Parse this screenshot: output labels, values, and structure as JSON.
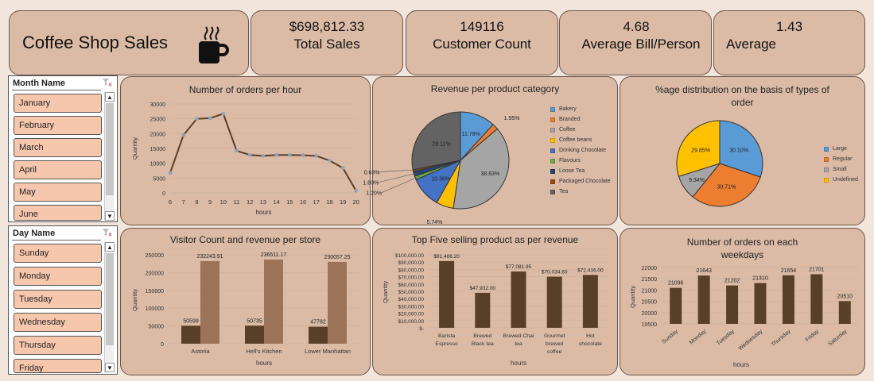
{
  "header": {
    "title": "Coffee Shop Sales",
    "icon": "coffee-cup-icon"
  },
  "kpis": [
    {
      "value": "$698,812.33",
      "label": "Total Sales"
    },
    {
      "value": "149116",
      "label": "Customer Count"
    },
    {
      "value": "4.68",
      "label": "Average Bill/Person"
    },
    {
      "value": "1.43",
      "label": "Average"
    }
  ],
  "slicers": {
    "month": {
      "header": "Month Name",
      "items": [
        "January",
        "February",
        "March",
        "April",
        "May",
        "June"
      ]
    },
    "day": {
      "header": "Day Name",
      "items": [
        "Sunday",
        "Monday",
        "Tuesday",
        "Wednesday",
        "Thursday",
        "Friday"
      ]
    }
  },
  "colors": {
    "bar_dark": "#5a3f28",
    "bar_light": "#9b7358",
    "card": "#dbbba6",
    "slicer_item": "#f7c7ad"
  },
  "chart_data": [
    {
      "type": "line",
      "title": "Number of orders per hour",
      "xlabel": "hours",
      "ylabel": "Quantity",
      "x": [
        6,
        7,
        8,
        9,
        10,
        11,
        12,
        13,
        14,
        15,
        16,
        17,
        18,
        19,
        20
      ],
      "values": [
        6800,
        19500,
        25000,
        25200,
        26700,
        14200,
        12800,
        12500,
        12800,
        12800,
        12700,
        12500,
        10900,
        8400,
        700
      ],
      "ylim": [
        0,
        30000
      ],
      "yticks": [
        "0",
        "5000",
        "10000",
        "15000",
        "20000",
        "25000",
        "30000"
      ]
    },
    {
      "type": "pie",
      "title": "Revenue per product category",
      "categories": [
        "Bakery",
        "Branded",
        "Coffee",
        "Coffee beans",
        "Drinking Chocolate",
        "Flavours",
        "Loose Tea",
        "Packaged Chocolate",
        "Tea"
      ],
      "values": [
        11.78,
        1.95,
        38.63,
        5.74,
        10.36,
        1.2,
        1.6,
        0.63,
        28.11
      ],
      "labels": [
        "11.78%",
        "1.95%",
        "38.63%",
        "5.74%",
        "10.36%",
        "1.20%",
        "1.60%",
        "0.63%",
        "28.11%"
      ],
      "colors": [
        "#5b9bd5",
        "#ed7d31",
        "#a5a5a5",
        "#ffc000",
        "#4472c4",
        "#70ad47",
        "#264478",
        "#9e480e",
        "#636363"
      ]
    },
    {
      "type": "pie",
      "title": "%age distribution on the basis of types of order",
      "categories": [
        "Large",
        "Regular",
        "Small",
        "Undefined"
      ],
      "values": [
        30.1,
        30.71,
        9.34,
        29.85
      ],
      "labels": [
        "30.10%",
        "30.71%",
        "9.34%",
        "29.85%"
      ],
      "colors": [
        "#5b9bd5",
        "#ed7d31",
        "#a5a5a5",
        "#ffc000"
      ]
    },
    {
      "type": "bar",
      "title": "Visitor Count and revenue per store",
      "xlabel": "hours",
      "ylabel": "Quantity",
      "categories": [
        "Astoria",
        "Hell's Kitchen",
        "Lower Manhattan"
      ],
      "series": [
        {
          "values": [
            50599,
            50735,
            47782
          ],
          "labels": [
            "50599",
            "50735",
            "47782"
          ]
        },
        {
          "values": [
            232243.91,
            236511.17,
            230057.25
          ],
          "labels": [
            "232243.91",
            "236511.17",
            "230057.25"
          ]
        }
      ],
      "ylim": [
        0,
        250000
      ],
      "yticks": [
        "0",
        "50000",
        "100000",
        "150000",
        "200000",
        "250000"
      ]
    },
    {
      "type": "bar",
      "title": "Top Five selling product as per revenue",
      "xlabel": "hours",
      "ylabel": "Quantity",
      "categories": [
        [
          "Barista",
          "Espresso"
        ],
        [
          "Brewed",
          "Black tea"
        ],
        [
          "Brewed Chai",
          "tea"
        ],
        [
          "Gourmet",
          "brewed",
          "coffee"
        ],
        [
          "Hot",
          "chocolate"
        ]
      ],
      "values": [
        91406.2,
        47932,
        77081.95,
        70034.6,
        72416
      ],
      "labels": [
        "$91,406.20",
        "$47,932.00",
        "$77,081.95",
        "$70,034.60",
        "$72,416.00"
      ],
      "ylim": [
        0,
        100000
      ],
      "yticks": [
        "$-",
        "$10,000.00",
        "$20,000.00",
        "$30,000.00",
        "$40,000.00",
        "$50,000.00",
        "$60,000.00",
        "$70,000.00",
        "$80,000.00",
        "$90,000.00",
        "$100,000.00"
      ]
    },
    {
      "type": "bar",
      "title": "Number of orders on each weekdays",
      "xlabel": "hours",
      "ylabel": "Quantity",
      "categories": [
        "Sunday",
        "Monday",
        "Tuesday",
        "Wednesday",
        "Thursday",
        "Friday",
        "Saturday"
      ],
      "values": [
        21096,
        21643,
        21202,
        21310,
        21654,
        21701,
        20510
      ],
      "labels": [
        "21096",
        "21643",
        "21202",
        "21310",
        "21654",
        "21701",
        "20510"
      ],
      "ylim": [
        19500,
        22000
      ],
      "yticks": [
        "19500",
        "20000",
        "20500",
        "21000",
        "21500",
        "22000"
      ]
    }
  ]
}
